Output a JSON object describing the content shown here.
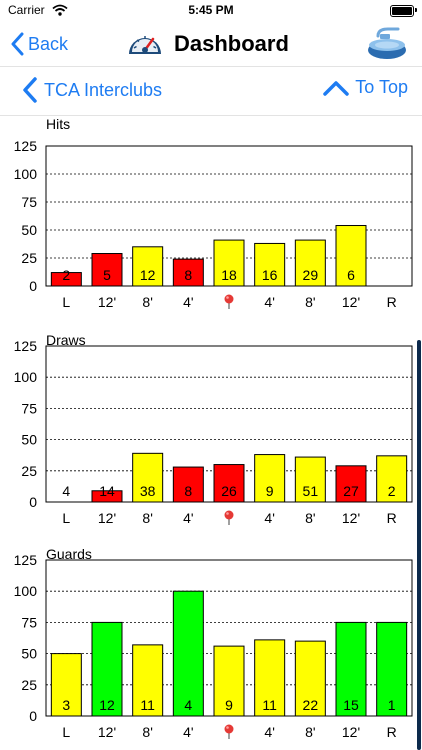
{
  "status_bar": {
    "carrier": "Carrier",
    "time": "5:45 PM"
  },
  "nav": {
    "back_label": "Back",
    "title": "Dashboard"
  },
  "subnav": {
    "left_label": "TCA Interclubs",
    "right_label": "To Top"
  },
  "chart_data": [
    {
      "type": "bar",
      "title": "Hits",
      "categories": [
        "L",
        "12'",
        "8'",
        "4'",
        "pin",
        "4'",
        "8'",
        "12'",
        "R"
      ],
      "values": [
        12,
        29,
        35,
        24,
        41,
        38,
        41,
        54,
        0
      ],
      "labels": [
        "2",
        "5",
        "12",
        "8",
        "18",
        "16",
        "29",
        "6",
        ""
      ],
      "colors": [
        "#ff0000",
        "#ff0000",
        "#ffff00",
        "#ff0000",
        "#ffff00",
        "#ffff00",
        "#ffff00",
        "#ffff00",
        "#ffff00"
      ],
      "yticks": [
        0,
        25,
        50,
        75,
        100,
        125
      ],
      "ylim": [
        0,
        125
      ],
      "grid": true
    },
    {
      "type": "bar",
      "title": "Draws",
      "categories": [
        "L",
        "12'",
        "8'",
        "4'",
        "pin",
        "4'",
        "8'",
        "12'",
        "R"
      ],
      "values": [
        0,
        9,
        39,
        28,
        30,
        38,
        36,
        29,
        37
      ],
      "labels": [
        "4",
        "14",
        "38",
        "8",
        "26",
        "9",
        "51",
        "27",
        "2"
      ],
      "colors": [
        "#ffffff",
        "#ff0000",
        "#ffff00",
        "#ff0000",
        "#ff0000",
        "#ffff00",
        "#ffff00",
        "#ff0000",
        "#ffff00"
      ],
      "yticks": [
        0,
        25,
        50,
        75,
        100,
        125
      ],
      "ylim": [
        0,
        125
      ],
      "grid": true
    },
    {
      "type": "bar",
      "title": "Guards",
      "categories": [
        "L",
        "12'",
        "8'",
        "4'",
        "pin",
        "4'",
        "8'",
        "12'",
        "R"
      ],
      "values": [
        50,
        75,
        57,
        100,
        56,
        61,
        60,
        75,
        75
      ],
      "labels": [
        "3",
        "12",
        "11",
        "4",
        "9",
        "11",
        "22",
        "15",
        "1"
      ],
      "colors": [
        "#ffff00",
        "#00ff00",
        "#ffff00",
        "#00ff00",
        "#ffff00",
        "#ffff00",
        "#ffff00",
        "#00ff00",
        "#00ff00"
      ],
      "yticks": [
        0,
        25,
        50,
        75,
        100,
        125
      ],
      "ylim": [
        0,
        125
      ],
      "grid": true
    }
  ]
}
